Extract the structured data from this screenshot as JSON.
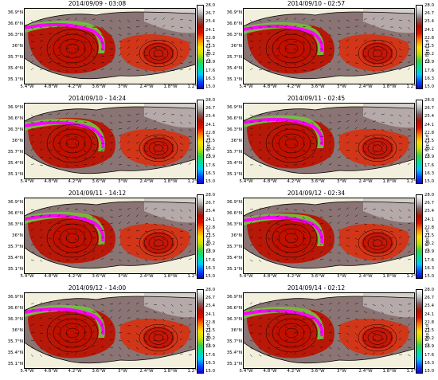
{
  "panels": [
    {
      "title": "2014/09/09 - 03:08"
    },
    {
      "title": "2014/09/10 - 02:57"
    },
    {
      "title": "2014/09/10 - 14:24"
    },
    {
      "title": "2014/09/11 - 02:45"
    },
    {
      "title": "2014/09/11 - 14:12"
    },
    {
      "title": "2014/09/12 - 02:34"
    },
    {
      "title": "2014/09/12 - 14:00"
    },
    {
      "title": "2014/09/14 - 02:12"
    }
  ],
  "y_ticks": [
    "36.9°N",
    "36.6°N",
    "36.3°N",
    "36°N",
    "35.7°N",
    "35.4°N",
    "35.1°N"
  ],
  "x_ticks": [
    "5.4°W",
    "4.8°W",
    "4.2°W",
    "3.6°W",
    "3°W",
    "2.4°W",
    "1.8°W",
    "1.2°W"
  ],
  "colorbar": {
    "ticks": [
      "28.0",
      "26.7",
      "25.4",
      "24.1",
      "22.8",
      "21.5",
      "20.2",
      "18.9",
      "17.6",
      "16.3",
      "15.0"
    ],
    "unit": "pT [deg C]",
    "colors": [
      "#1a00c8",
      "#0050ff",
      "#00c8ff",
      "#00e0a0",
      "#40d040",
      "#c8e000",
      "#ffe000",
      "#ff8000",
      "#e01000",
      "#b01000",
      "#806060",
      "#c0c0c0",
      "#ffffff"
    ]
  },
  "colors": {
    "land": "#f2f0dc",
    "warm": "#b81808",
    "hot": "#d83010",
    "grey": "#8a7474",
    "front": "#ff00ff"
  }
}
